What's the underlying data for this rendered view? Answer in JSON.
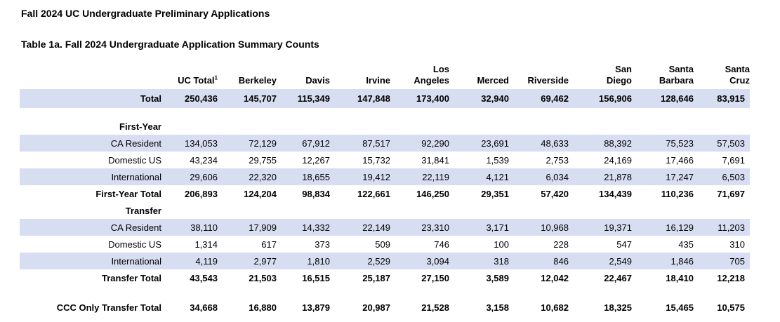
{
  "page_title": "Fall 2024 UC Undergraduate Preliminary Applications",
  "table_title": "Table 1a. Fall 2024 Undergraduate Application Summary Counts",
  "colors": {
    "row_shade": "#D8DEF2",
    "text": "#000000",
    "background": "#FFFFFF"
  },
  "table": {
    "columns": [
      {
        "label": "UC Total",
        "sup": "1"
      },
      {
        "label": "Berkeley"
      },
      {
        "label": "Davis"
      },
      {
        "label": "Irvine"
      },
      {
        "label": "Los\nAngeles"
      },
      {
        "label": "Merced"
      },
      {
        "label": "Riverside"
      },
      {
        "label": "San\nDiego"
      },
      {
        "label": "Santa\nBarbara"
      },
      {
        "label": "Santa\nCruz"
      }
    ],
    "rows": [
      {
        "type": "total",
        "label": "Total",
        "bold": true,
        "indent": 0,
        "shaded": true,
        "values": [
          "250,436",
          "145,707",
          "115,349",
          "147,848",
          "173,400",
          "32,940",
          "69,462",
          "156,906",
          "128,646",
          "83,915"
        ]
      },
      {
        "type": "spacer",
        "height": 14
      },
      {
        "type": "section",
        "label": "First-Year",
        "bold": true,
        "indent": 0,
        "shaded": false,
        "values": []
      },
      {
        "type": "data",
        "label": "CA Resident",
        "bold": false,
        "indent": 1,
        "shaded": true,
        "values": [
          "134,053",
          "72,129",
          "67,912",
          "87,517",
          "92,290",
          "23,691",
          "48,633",
          "88,392",
          "75,523",
          "57,503"
        ]
      },
      {
        "type": "data",
        "label": "Domestic US",
        "bold": false,
        "indent": 1,
        "shaded": false,
        "values": [
          "43,234",
          "29,755",
          "12,267",
          "15,732",
          "31,841",
          "1,539",
          "2,753",
          "24,169",
          "17,466",
          "7,691"
        ]
      },
      {
        "type": "data",
        "label": "International",
        "bold": false,
        "indent": 1,
        "shaded": true,
        "values": [
          "29,606",
          "22,320",
          "18,655",
          "19,412",
          "22,119",
          "4,121",
          "6,034",
          "21,878",
          "17,247",
          "6,503"
        ]
      },
      {
        "type": "subtotal",
        "label": "First-Year Total",
        "bold": true,
        "indent": 2,
        "shaded": false,
        "values": [
          "206,893",
          "124,204",
          "98,834",
          "122,661",
          "146,250",
          "29,351",
          "57,420",
          "134,439",
          "110,236",
          "71,697"
        ]
      },
      {
        "type": "section",
        "label": "Transfer",
        "bold": true,
        "indent": 0,
        "shaded": false,
        "values": []
      },
      {
        "type": "data",
        "label": "CA Resident",
        "bold": false,
        "indent": 1,
        "shaded": true,
        "values": [
          "38,110",
          "17,909",
          "14,332",
          "22,149",
          "23,310",
          "3,171",
          "10,968",
          "19,371",
          "16,129",
          "11,203"
        ]
      },
      {
        "type": "data",
        "label": "Domestic US",
        "bold": false,
        "indent": 1,
        "shaded": false,
        "values": [
          "1,314",
          "617",
          "373",
          "509",
          "746",
          "100",
          "228",
          "547",
          "435",
          "310"
        ]
      },
      {
        "type": "data",
        "label": "International",
        "bold": false,
        "indent": 1,
        "shaded": true,
        "values": [
          "4,119",
          "2,977",
          "1,810",
          "2,529",
          "3,094",
          "318",
          "846",
          "2,549",
          "1,846",
          "705"
        ]
      },
      {
        "type": "subtotal",
        "label": "Transfer Total",
        "bold": true,
        "indent": 2,
        "shaded": false,
        "values": [
          "43,543",
          "21,503",
          "16,515",
          "25,187",
          "27,150",
          "3,589",
          "12,042",
          "22,467",
          "18,410",
          "12,218"
        ]
      },
      {
        "type": "spacer",
        "height": 18
      },
      {
        "type": "grand",
        "label": "CCC Only Transfer Total",
        "bold": true,
        "indent": 0,
        "shaded": false,
        "values": [
          "34,668",
          "16,880",
          "13,879",
          "20,987",
          "21,528",
          "3,158",
          "10,682",
          "18,325",
          "15,465",
          "10,575"
        ]
      }
    ]
  }
}
